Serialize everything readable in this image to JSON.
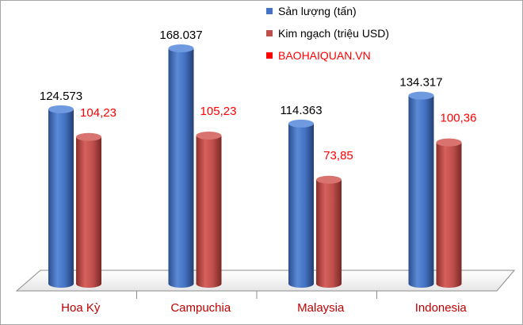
{
  "chart_data": {
    "type": "bar",
    "categories": [
      "Hoa Kỳ",
      "Campuchia",
      "Malaysia",
      "Indonesia"
    ],
    "series": [
      {
        "name": "Sản lượng (tấn)",
        "color": "#4472c4",
        "values": [
          124573,
          168037,
          114363,
          134317
        ],
        "labels": [
          "124.573",
          "168.037",
          "114.363",
          "134.317"
        ]
      },
      {
        "name": "Kim ngạch (triệu USD)",
        "color": "#c0504d",
        "values": [
          104.23,
          105.23,
          73.85,
          100.36
        ],
        "labels": [
          "104,23",
          "105,23",
          "73,85",
          "100,36"
        ]
      }
    ],
    "legend_extra": {
      "label": "BAOHAIQUAN.VN",
      "color": "#ff0000"
    },
    "legend_position": "top-right",
    "grid": false,
    "style": "3d-cylinder"
  }
}
